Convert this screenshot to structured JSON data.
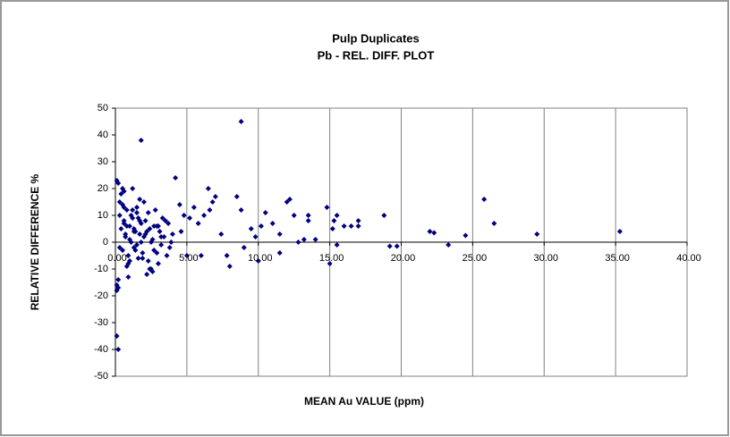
{
  "chart_data": {
    "type": "scatter",
    "title": "Pulp Duplicates",
    "subtitle": "Pb -  REL. DIFF. PLOT",
    "x_label": "MEAN  Au VALUE (ppm)",
    "y_label": "RELATIVE DIFFERENCE %",
    "xlim": [
      0,
      40
    ],
    "ylim": [
      -50,
      50
    ],
    "xticks": [
      {
        "value": 0,
        "label": "0.00"
      },
      {
        "value": 5,
        "label": "5.00"
      },
      {
        "value": 10,
        "label": "10.00"
      },
      {
        "value": 15,
        "label": "15.00"
      },
      {
        "value": 20,
        "label": "20.00"
      },
      {
        "value": 25,
        "label": "25.00"
      },
      {
        "value": 30,
        "label": "30.00"
      },
      {
        "value": 35,
        "label": "35.00"
      },
      {
        "value": 40,
        "label": "40.00"
      }
    ],
    "yticks": [
      -50,
      -40,
      -30,
      -20,
      -10,
      0,
      10,
      20,
      30,
      40,
      50
    ],
    "grid": "x",
    "color": "#000080",
    "x": [
      0.1,
      0.2,
      0.1,
      0.1,
      0.2,
      0.1,
      0.2,
      1.8,
      8.8,
      4.2,
      0.5,
      1.2,
      25.8,
      26.5,
      29.5,
      35.3,
      24.5,
      23.3,
      22.3,
      22.0,
      19.7,
      19.2,
      18.8,
      17.0,
      17.0,
      16.5,
      16.0,
      15.5,
      15.3,
      15.0,
      15.5,
      15.2,
      14.8,
      13.5,
      13.5,
      13.2,
      12.5,
      12.0,
      12.2,
      11.5,
      11.0,
      11.5,
      10.0,
      10.2,
      9.5,
      9.8,
      8.5,
      8.8,
      8.0,
      7.8,
      7.0,
      6.8,
      6.5,
      6.2,
      6.0,
      5.8,
      5.5,
      5.0,
      4.5,
      4.8,
      4.0,
      3.8,
      3.5,
      3.0,
      2.8,
      2.5,
      2.2,
      2.0,
      0.3,
      0.4,
      0.5,
      0.6,
      0.7,
      0.8,
      0.9,
      1.0,
      1.1,
      1.2,
      1.3,
      1.4,
      1.5,
      1.6,
      1.7,
      1.8,
      1.9,
      2.0,
      2.1,
      2.3,
      2.4,
      2.6,
      2.7,
      2.9,
      3.1,
      3.2,
      3.3,
      3.4,
      3.6,
      3.7,
      3.9,
      0.3,
      0.5,
      0.7,
      0.9,
      1.1,
      1.3,
      1.5,
      1.7,
      1.9,
      2.1,
      2.3,
      2.5,
      2.7,
      2.9,
      3.2,
      0.4,
      0.6,
      0.8,
      1.0,
      1.2,
      1.4,
      1.6,
      1.8,
      2.2,
      2.6,
      3.0,
      0.2,
      0.3,
      0.6,
      1.0,
      1.5,
      4.6,
      5.2,
      6.6,
      7.4,
      9.0,
      10.5,
      12.8,
      14.0,
      0.9,
      1.3,
      1.7,
      2.4,
      0.6,
      0.8
    ],
    "values": [
      23,
      22,
      -16,
      -18,
      -17,
      -35,
      -40,
      38,
      45,
      24,
      20,
      20,
      16,
      7,
      3,
      4,
      2.5,
      -1,
      3.5,
      4,
      -1.5,
      -1.5,
      10,
      6,
      8,
      6,
      6,
      10,
      8,
      -8,
      -1,
      5,
      13,
      10,
      8,
      1,
      10,
      15,
      16,
      -4,
      7,
      3,
      -7,
      6,
      5,
      2,
      17,
      12,
      -9,
      -5,
      17,
      15,
      20,
      10,
      -5,
      7,
      13,
      -5,
      14,
      10,
      3,
      -2,
      8,
      -8,
      12,
      -10,
      -12,
      15,
      10,
      5,
      -3,
      8,
      2,
      12,
      -5,
      6,
      0,
      9,
      -2,
      4,
      11,
      -6,
      3,
      7,
      -4,
      2,
      8,
      -7,
      5,
      1,
      -3,
      6,
      4,
      -1,
      9,
      2,
      -5,
      7,
      0,
      -2,
      14,
      3,
      -8,
      10,
      5,
      -1,
      8,
      -6,
      3,
      11,
      0,
      6,
      -4,
      2,
      18,
      7,
      -9,
      1,
      12,
      -3,
      9,
      0,
      4,
      -11,
      6,
      -14,
      15,
      19,
      -7,
      13,
      4,
      9,
      12,
      3,
      -2,
      11,
      0,
      1,
      -13,
      4,
      16,
      -10,
      13,
      6
    ]
  }
}
